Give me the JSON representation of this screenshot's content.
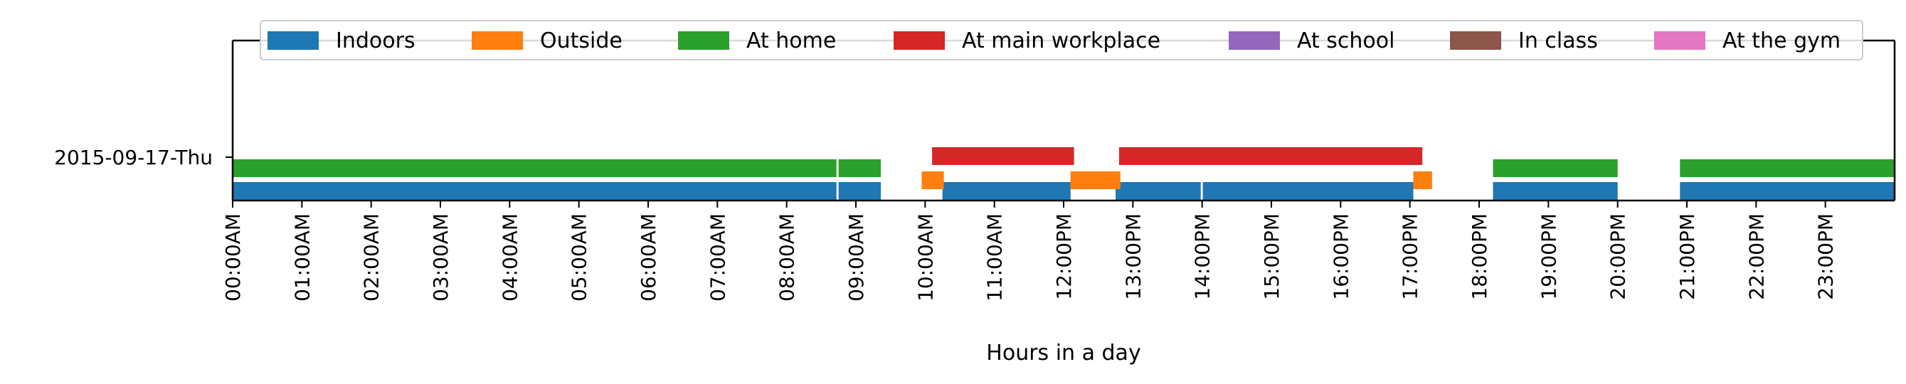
{
  "chart_data": {
    "type": "timeline",
    "title": "",
    "xlabel": "Hours in a day",
    "ylabel": "",
    "xlim": [
      0,
      24
    ],
    "row_label": "2015-09-17-Thu",
    "xtick_labels": [
      "00:00AM",
      "01:00AM",
      "02:00AM",
      "03:00AM",
      "04:00AM",
      "05:00AM",
      "06:00AM",
      "07:00AM",
      "08:00AM",
      "09:00AM",
      "10:00AM",
      "11:00AM",
      "12:00PM",
      "13:00PM",
      "14:00PM",
      "15:00PM",
      "16:00PM",
      "17:00PM",
      "18:00PM",
      "19:00PM",
      "20:00PM",
      "21:00PM",
      "22:00PM",
      "23:00PM"
    ],
    "legend_position": "top",
    "series": [
      {
        "name": "Indoors",
        "color": "#1f77b4",
        "segments": [
          [
            0.0,
            8.72
          ],
          [
            8.75,
            9.36
          ],
          [
            10.25,
            12.1
          ],
          [
            12.75,
            13.98
          ],
          [
            14.01,
            17.05
          ],
          [
            18.2,
            20.0
          ],
          [
            20.9,
            24.0
          ]
        ]
      },
      {
        "name": "Outside",
        "color": "#ff7f0e",
        "segments": [
          [
            9.95,
            10.27
          ],
          [
            12.1,
            12.82
          ],
          [
            17.05,
            17.32
          ]
        ]
      },
      {
        "name": "At home",
        "color": "#2ca02c",
        "segments": [
          [
            0.0,
            8.72
          ],
          [
            8.75,
            9.36
          ],
          [
            18.2,
            20.0
          ],
          [
            20.9,
            24.0
          ]
        ]
      },
      {
        "name": "At main workplace",
        "color": "#d62728",
        "segments": [
          [
            10.1,
            12.15
          ],
          [
            12.8,
            17.18
          ]
        ]
      },
      {
        "name": "At school",
        "color": "#9467bd",
        "segments": []
      },
      {
        "name": "In class",
        "color": "#8c564b",
        "segments": []
      },
      {
        "name": "At the gym",
        "color": "#e377c2",
        "segments": []
      }
    ]
  }
}
